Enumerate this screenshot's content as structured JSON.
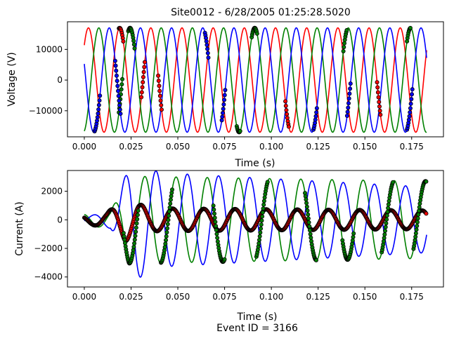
{
  "figure": {
    "footer": "Event ID = 3166"
  },
  "chart_data": [
    {
      "type": "line",
      "title": "Site0012 - 6/28/2005 01:25:28.5020",
      "xlabel": "Time (s)",
      "ylabel": "Voltage (V)",
      "xlim": [
        -0.009,
        0.192
      ],
      "ylim": [
        -18500,
        19000
      ],
      "xticks": [
        0.0,
        0.025,
        0.05,
        0.075,
        0.1,
        0.125,
        0.15,
        0.175
      ],
      "xtick_labels": [
        "0.000",
        "0.025",
        "0.050",
        "0.075",
        "0.100",
        "0.125",
        "0.150",
        "0.175"
      ],
      "yticks": [
        -10000,
        0,
        10000
      ],
      "ytick_labels": [
        "−10000",
        "0",
        "10000"
      ],
      "grid": false,
      "series": [
        {
          "color": "#ff0000",
          "waveform": {
            "t_start": 0.0,
            "t_end": 0.183,
            "frequency_hz": 60,
            "amplitude": 17000,
            "phase_deg": 42
          },
          "marked_intervals": [
            [
              0.0185,
              0.021
            ],
            [
              0.0305,
              0.0325
            ],
            [
              0.0395,
              0.0415
            ],
            [
              0.1075,
              0.1095
            ],
            [
              0.1565,
              0.1585
            ]
          ]
        },
        {
          "color": "#008000",
          "waveform": {
            "t_start": 0.0,
            "t_end": 0.183,
            "frequency_hz": 60,
            "amplitude": 17000,
            "phase_deg": -78
          },
          "marked_intervals": [
            [
              0.0185,
              0.0205
            ],
            [
              0.0235,
              0.027
            ],
            [
              0.0815,
              0.0835
            ],
            [
              0.0895,
              0.0925
            ],
            [
              0.1385,
              0.1405
            ],
            [
              0.1725,
              0.1745
            ]
          ]
        },
        {
          "color": "#0000ff",
          "waveform": {
            "t_start": 0.0,
            "t_end": 0.183,
            "frequency_hz": 60,
            "amplitude": 17000,
            "phase_deg": 162
          },
          "marked_intervals": [
            [
              0.0055,
              0.0085
            ],
            [
              0.0165,
              0.0195
            ],
            [
              0.0645,
              0.0665
            ],
            [
              0.0735,
              0.0755
            ],
            [
              0.1225,
              0.1245
            ],
            [
              0.1405,
              0.1425
            ],
            [
              0.1725,
              0.1755
            ]
          ]
        }
      ]
    },
    {
      "type": "line",
      "title": "",
      "xlabel": "Time (s)",
      "ylabel": "Current (A)",
      "xlim": [
        -0.009,
        0.192
      ],
      "ylim": [
        -4700,
        3450
      ],
      "xticks": [
        0.0,
        0.025,
        0.05,
        0.075,
        0.1,
        0.125,
        0.15,
        0.175
      ],
      "xtick_labels": [
        "0.000",
        "0.025",
        "0.050",
        "0.075",
        "0.100",
        "0.125",
        "0.150",
        "0.175"
      ],
      "yticks": [
        -4000,
        -2000,
        0,
        2000
      ],
      "ytick_labels": [
        "−4000",
        "−2000",
        "0",
        "2000"
      ],
      "grid": false,
      "series": [
        {
          "color": "#ff0000",
          "waveform": {
            "t_start": 0.0,
            "t_end": 0.183,
            "frequency_hz": 60,
            "amplitude_envelope": [
              [
                0.0,
                300
              ],
              [
                0.012,
                500
              ],
              [
                0.022,
                1500
              ],
              [
                0.035,
                800
              ],
              [
                0.183,
                650
              ]
            ],
            "phase_deg": 150,
            "offset": 0
          },
          "marked_intervals": [
            [
              0.0,
              0.183
            ]
          ]
        },
        {
          "color": "#008000",
          "waveform": {
            "t_start": 0.0,
            "t_end": 0.183,
            "frequency_hz": 60,
            "amplitude_envelope": [
              [
                0.0,
                400
              ],
              [
                0.014,
                600
              ],
              [
                0.024,
                3050
              ],
              [
                0.183,
                2700
              ]
            ],
            "phase_deg": 110,
            "offset": 0
          },
          "marked_intervals": [
            [
              0.021,
              0.029
            ],
            [
              0.041,
              0.047
            ],
            [
              0.069,
              0.075
            ],
            [
              0.092,
              0.098
            ],
            [
              0.118,
              0.124
            ],
            [
              0.138,
              0.144
            ],
            [
              0.159,
              0.165
            ],
            [
              0.176,
              0.183
            ]
          ]
        },
        {
          "color": "#0000ff",
          "waveform": {
            "t_start": 0.0,
            "t_end": 0.183,
            "frequency_hz": 60,
            "amplitude_envelope": [
              [
                0.0,
                200
              ],
              [
                0.014,
                600
              ],
              [
                0.026,
                4300
              ],
              [
                0.04,
                3300
              ],
              [
                0.183,
                2300
              ]
            ],
            "phase_deg": -20,
            "offset": 0
          },
          "marked_intervals": []
        }
      ]
    }
  ]
}
